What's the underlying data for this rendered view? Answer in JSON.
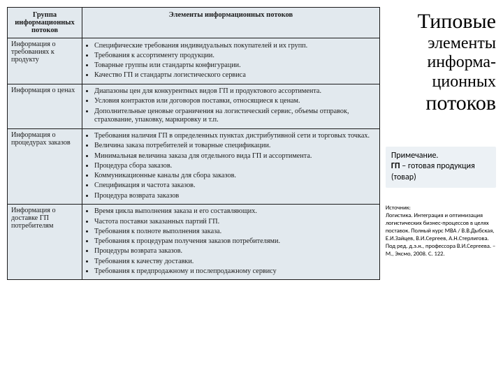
{
  "header": {
    "col1": "Группа информационных потоков",
    "col2": "Элементы информационных потоков"
  },
  "rows": [
    {
      "group": "Информация о требованиях к продукту",
      "items": [
        "Специфические требования индивидуальных покупателей и их групп.",
        "Требования к ассортименту продукции.",
        "Товарные группы или стандарты конфигурации.",
        "Качество ГП и стандарты логистического сервиса"
      ]
    },
    {
      "group": "Информация о ценах",
      "items": [
        "Диапазоны цен для конкурентных видов ГП и продуктового ассортимента.",
        "Условия контрактов или договоров поставки, относящиеся к ценам.",
        "Дополнительные ценовые ограничения на логистический сервис, объемы отправок, страхование, упаковку, маркировку и т.п."
      ]
    },
    {
      "group": "Информация о процедурах заказов",
      "items": [
        "Требования наличия ГП в определенных пунктах дистрибутивной сети и торговых точках.",
        "Величина заказа потребителей и товарные спецификации.",
        "Минимальная величина заказа для отдельного вида ГП и ассортимента.",
        "Процедура сбора заказов.",
        "Коммуникационные каналы для сбора заказов.",
        "Спецификация и частота заказов.",
        "Процедура возврата заказов"
      ]
    },
    {
      "group": "Информация о доставке ГП потребителям",
      "items": [
        "Время цикла выполнения заказа и его составляющих.",
        "Частота поставки заказанных партий ГП.",
        "Требования к полноте выполнения заказа.",
        "Требования к процедурам получения заказов потребителями.",
        "Процедуры возврата заказов.",
        "Требования к качеству доставки.",
        "Требования к предпродажному и послепродажному сервису"
      ]
    }
  ],
  "title": {
    "l1": "Типовые",
    "l2": "элементы",
    "l3": "информа-",
    "l4": "ционных",
    "l5": "потоков"
  },
  "note": {
    "line1": "Примечание.",
    "line2a": "ГП",
    "line2b": " – готовая продукция (товар)"
  },
  "source": {
    "l1": "Источник:",
    "l2": "Логистика. Интеграция и оптимизация логистических бизнес-процессов в целях поставок. Полный курс MBA / В.В.Дыбская, Е.И.Зайцев, В.И.Сергеев, А.Н.Стерлигова. Под ред. д.э.н., профессора В.И.Сергеева. – М., Эксмо, 2008. С. 122."
  },
  "style": {
    "table_bg": "#e2e9ee",
    "border": "#1a1a1a",
    "note_bg": "#ecf1f5"
  }
}
